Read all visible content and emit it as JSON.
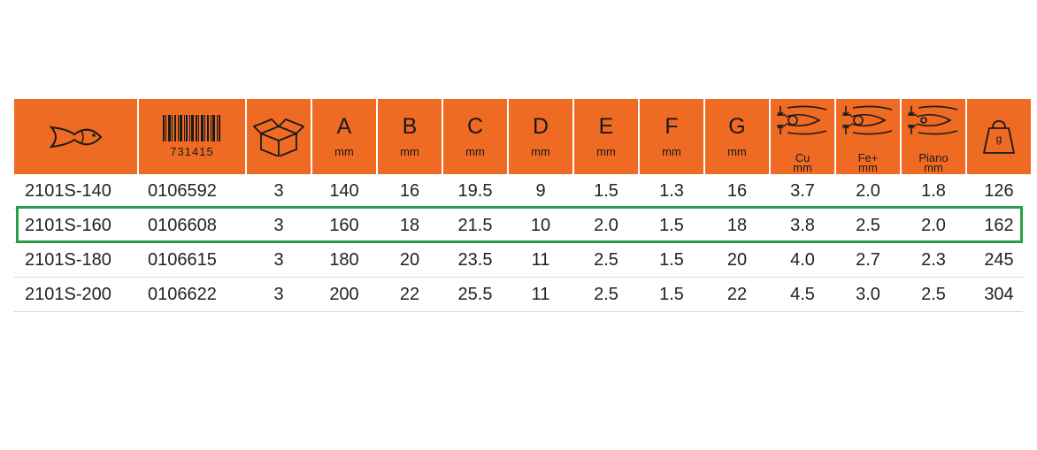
{
  "header": {
    "barcode_number": "731415",
    "columns": [
      {
        "letter": "A",
        "unit": "mm"
      },
      {
        "letter": "B",
        "unit": "mm"
      },
      {
        "letter": "C",
        "unit": "mm"
      },
      {
        "letter": "D",
        "unit": "mm"
      },
      {
        "letter": "E",
        "unit": "mm"
      },
      {
        "letter": "F",
        "unit": "mm"
      },
      {
        "letter": "G",
        "unit": "mm"
      }
    ],
    "cut_cu": {
      "label": "Cu",
      "unit": "mm"
    },
    "cut_fe": {
      "label": "Fe+",
      "unit": "mm"
    },
    "cut_piano": {
      "label": "Piano",
      "unit": "mm"
    },
    "weight_unit": "g"
  },
  "rows": [
    [
      "2101S-140",
      "0106592",
      "3",
      "140",
      "16",
      "19.5",
      "9",
      "1.5",
      "1.3",
      "16",
      "3.7",
      "2.0",
      "1.8",
      "126"
    ],
    [
      "2101S-160",
      "0106608",
      "3",
      "160",
      "18",
      "21.5",
      "10",
      "2.0",
      "1.5",
      "18",
      "3.8",
      "2.5",
      "2.0",
      "162"
    ],
    [
      "2101S-180",
      "0106615",
      "3",
      "180",
      "20",
      "23.5",
      "11",
      "2.5",
      "1.5",
      "20",
      "4.0",
      "2.7",
      "2.3",
      "245"
    ],
    [
      "2101S-200",
      "0106622",
      "3",
      "200",
      "22",
      "25.5",
      "11",
      "2.5",
      "1.5",
      "22",
      "4.5",
      "3.0",
      "2.5",
      "304"
    ]
  ],
  "highlighted_row": "2101S-160",
  "colors": {
    "header_bg": "#ef6a23",
    "highlight": "#27a048"
  }
}
